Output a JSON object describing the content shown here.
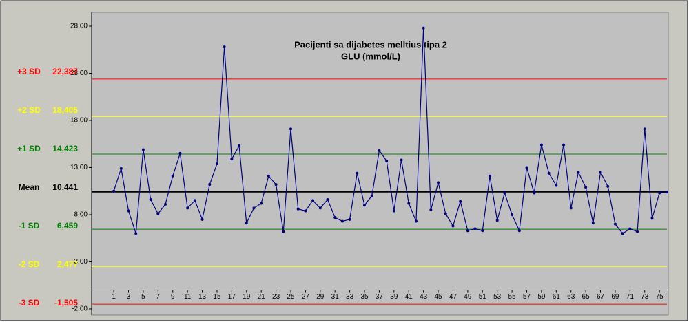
{
  "chart_data": {
    "type": "line",
    "title": "Pacijenti sa dijabetes melltius tipa 2",
    "subtitle": "GLU (mmol/L)",
    "x": [
      1,
      2,
      3,
      4,
      5,
      6,
      7,
      8,
      9,
      10,
      11,
      12,
      13,
      14,
      15,
      16,
      17,
      18,
      19,
      20,
      21,
      22,
      23,
      24,
      25,
      26,
      27,
      28,
      29,
      30,
      31,
      32,
      33,
      34,
      35,
      36,
      37,
      38,
      39,
      40,
      41,
      42,
      43,
      44,
      45,
      46,
      47,
      48,
      49,
      50,
      51,
      52,
      53,
      54,
      55,
      56,
      57,
      58,
      59,
      60,
      61,
      62,
      63,
      64,
      65,
      66,
      67,
      68,
      69,
      70,
      71,
      72,
      73,
      74,
      75,
      76
    ],
    "series": [
      {
        "name": "GLU",
        "color": "#000080",
        "values": [
          10.5,
          12.9,
          8.4,
          6.0,
          14.9,
          9.6,
          8.1,
          9.1,
          12.1,
          14.5,
          8.7,
          9.5,
          7.5,
          11.2,
          13.4,
          25.8,
          13.9,
          15.3,
          7.1,
          8.7,
          9.2,
          12.1,
          11.2,
          6.2,
          17.1,
          8.6,
          8.4,
          9.5,
          8.7,
          9.6,
          7.7,
          7.3,
          7.5,
          12.4,
          9.0,
          10.0,
          14.8,
          13.7,
          8.4,
          13.8,
          9.2,
          7.3,
          27.8,
          8.5,
          11.4,
          8.1,
          6.8,
          9.4,
          6.3,
          6.5,
          6.3,
          12.1,
          7.4,
          10.3,
          8.0,
          6.3,
          13.0,
          10.3,
          15.4,
          12.4,
          11.1,
          15.4,
          8.7,
          12.5,
          10.9,
          7.1,
          12.5,
          11.0,
          7.0,
          6.0,
          6.5,
          6.2,
          17.1,
          7.6,
          10.3,
          10.4
        ]
      }
    ],
    "control_lines": [
      {
        "name": "+3 SD",
        "value": 22.387,
        "label": "22,387",
        "color": "#ff0000"
      },
      {
        "name": "+2 SD",
        "value": 18.405,
        "label": "18,405",
        "color": "#ffff00"
      },
      {
        "name": "+1 SD",
        "value": 14.423,
        "label": "14,423",
        "color": "#008000"
      },
      {
        "name": "Mean",
        "value": 10.441,
        "label": "10,441",
        "color": "#000000"
      },
      {
        "name": "-1 SD",
        "value": 6.459,
        "label": "6,459",
        "color": "#008000"
      },
      {
        "name": "-2 SD",
        "value": 2.477,
        "label": "2,477",
        "color": "#ffff00"
      },
      {
        "name": "-3 SD",
        "value": -1.505,
        "label": "-1,505",
        "color": "#ff0000"
      }
    ],
    "xlim": [
      -2,
      76.2
    ],
    "xticks": [
      1,
      3,
      5,
      7,
      9,
      11,
      13,
      15,
      17,
      19,
      21,
      23,
      25,
      27,
      29,
      31,
      33,
      35,
      37,
      39,
      41,
      43,
      45,
      47,
      49,
      51,
      53,
      55,
      57,
      59,
      61,
      63,
      65,
      67,
      69,
      71,
      73,
      75
    ],
    "ylim": [
      -2.66,
      29.46
    ],
    "yticks": [
      {
        "value": -2,
        "label": "-2,00"
      },
      {
        "value": 3,
        "label": "3,00"
      },
      {
        "value": 8,
        "label": "8,00"
      },
      {
        "value": 13,
        "label": "13,00"
      },
      {
        "value": 18,
        "label": "18,00"
      },
      {
        "value": 23,
        "label": "23,00"
      },
      {
        "value": 28,
        "label": "28,00"
      }
    ]
  }
}
